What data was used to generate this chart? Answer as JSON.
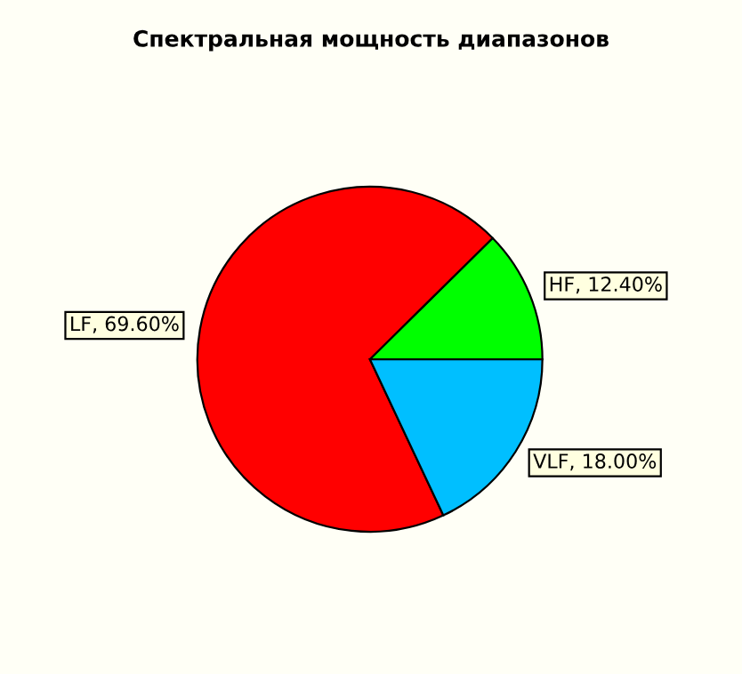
{
  "chart_data": {
    "type": "pie",
    "title": "Спектральная мощность диапазонов",
    "categories": [
      "HF",
      "LF",
      "VLF"
    ],
    "values": [
      12.4,
      69.6,
      18.0
    ],
    "colors": [
      "#00ff00",
      "#ff0000",
      "#00bfff"
    ],
    "value_labels": [
      "12.40%",
      "69.60%",
      "18.00%"
    ],
    "legend": false
  }
}
